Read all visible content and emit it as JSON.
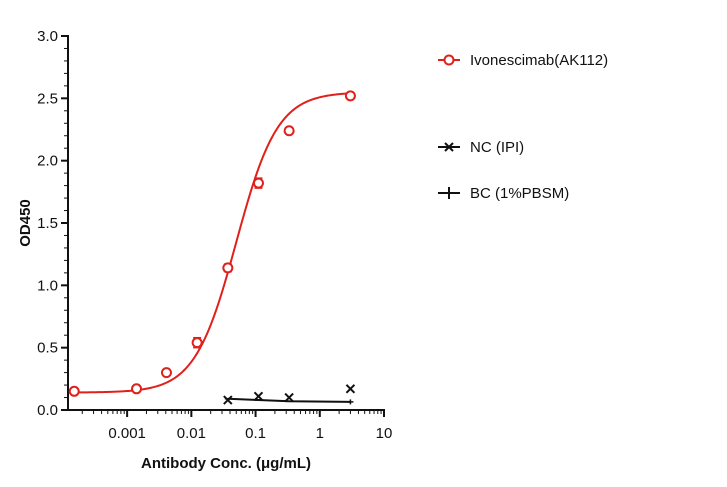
{
  "chart_data": {
    "type": "scatter",
    "title": "",
    "xlabel": "Antibody Conc. (μg/mL)",
    "ylabel": "OD450",
    "x_scale": "log",
    "xlim": [
      0.00012,
      10
    ],
    "ylim": [
      0,
      3.0
    ],
    "x_ticks": [
      {
        "value": 0.001,
        "label": "0.001"
      },
      {
        "value": 0.01,
        "label": "0.01"
      },
      {
        "value": 0.1,
        "label": "0.1"
      },
      {
        "value": 1,
        "label": "1"
      },
      {
        "value": 10,
        "label": "10"
      }
    ],
    "y_ticks": [
      {
        "value": 0,
        "label": "0.0"
      },
      {
        "value": 0.5,
        "label": "0.5"
      },
      {
        "value": 1.0,
        "label": "1.0"
      },
      {
        "value": 1.5,
        "label": "1.5"
      },
      {
        "value": 2.0,
        "label": "2.0"
      },
      {
        "value": 2.5,
        "label": "2.5"
      },
      {
        "value": 3.0,
        "label": "3.0"
      }
    ],
    "grid": false,
    "legend_position": "right",
    "series": [
      {
        "name": "Ivonescimab(AK112)",
        "color": "#e0201b",
        "marker": "open-circle",
        "fit": "4PL",
        "fit_params": {
          "bottom": 0.14,
          "top": 2.55,
          "ec50": 0.05,
          "hill": 1.35
        },
        "x": [
          0.00015,
          0.0014,
          0.0041,
          0.0123,
          0.037,
          0.111,
          0.333,
          3.0
        ],
        "y": [
          0.15,
          0.17,
          0.3,
          0.54,
          1.14,
          1.82,
          2.24,
          2.52
        ],
        "err": [
          0.01,
          0.01,
          0.01,
          0.04,
          0.03,
          0.04,
          0.02,
          0.02
        ]
      },
      {
        "name": "NC (IPI)",
        "color": "#111111",
        "marker": "x",
        "x": [
          0.037,
          0.111,
          0.333,
          3.0
        ],
        "y": [
          0.08,
          0.11,
          0.1,
          0.17
        ]
      },
      {
        "name": "BC (1%PBSM)",
        "color": "#111111",
        "marker": "plus",
        "fit": "line",
        "x": [
          0.037,
          0.111,
          0.333,
          3.0
        ],
        "y": [
          0.09,
          0.08,
          0.07,
          0.065
        ],
        "err": [
          0.005,
          0.005,
          0.005,
          0.02
        ]
      }
    ]
  }
}
